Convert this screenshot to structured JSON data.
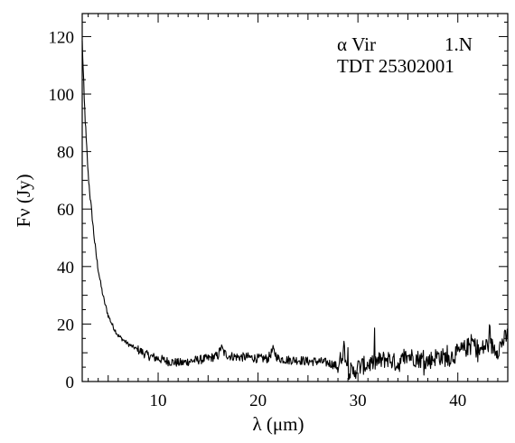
{
  "chart_data": {
    "type": "line",
    "title": "",
    "xlabel": "λ (μm)",
    "ylabel": "Fν (Jy)",
    "xlim": [
      2.4,
      45
    ],
    "ylim": [
      0,
      128
    ],
    "x_ticks": [
      10,
      20,
      30,
      40
    ],
    "y_ticks": [
      0,
      20,
      40,
      60,
      80,
      100,
      120
    ],
    "grid": false,
    "legend": "none",
    "line_color": "#000000",
    "annotations": {
      "target": "α Vir",
      "band": "1.N",
      "tdt": "TDT 25302001"
    },
    "series": [
      {
        "name": "",
        "x": [
          2.4,
          2.5,
          2.6,
          2.7,
          2.8,
          2.9,
          3.0,
          3.2,
          3.4,
          3.6,
          3.8,
          4.0,
          4.3,
          4.6,
          5.0,
          5.5,
          6.0,
          6.5,
          7.0,
          7.5,
          8.0,
          8.5,
          9.0,
          9.5,
          10.0,
          10.5,
          11.0,
          11.5,
          12.0,
          12.5,
          13.0,
          14.0,
          15.0,
          16.0,
          16.3,
          16.6,
          17.0,
          18.0,
          19.0,
          20.0,
          21.0,
          21.5,
          22.0,
          23.0,
          24.0,
          25.0,
          26.0,
          27.0,
          27.5,
          28.0,
          28.3,
          28.6,
          29.0,
          29.5,
          30.0,
          31.0,
          32.0,
          33.0,
          34.0,
          35.0,
          36.0,
          37.0,
          38.0,
          39.0,
          40.0,
          41.0,
          41.5,
          42.0,
          43.0,
          44.0,
          44.5,
          45.0
        ],
        "y": [
          118,
          108,
          98,
          91,
          84,
          78,
          72,
          64,
          57,
          50,
          44,
          39,
          33,
          28,
          23,
          19,
          16,
          14.5,
          13,
          12,
          11,
          10,
          9,
          8.5,
          8,
          7.5,
          7,
          6.8,
          6.5,
          6.5,
          7,
          7.5,
          8,
          9,
          12,
          10,
          9,
          8.5,
          8.5,
          8,
          8,
          11,
          8,
          7.5,
          7.5,
          7,
          7,
          6.5,
          6,
          5,
          8,
          12,
          4,
          3,
          5,
          6,
          7,
          8,
          6,
          9,
          8,
          7,
          9,
          8,
          10,
          12,
          14,
          10,
          13,
          11,
          14,
          16
        ]
      }
    ]
  }
}
